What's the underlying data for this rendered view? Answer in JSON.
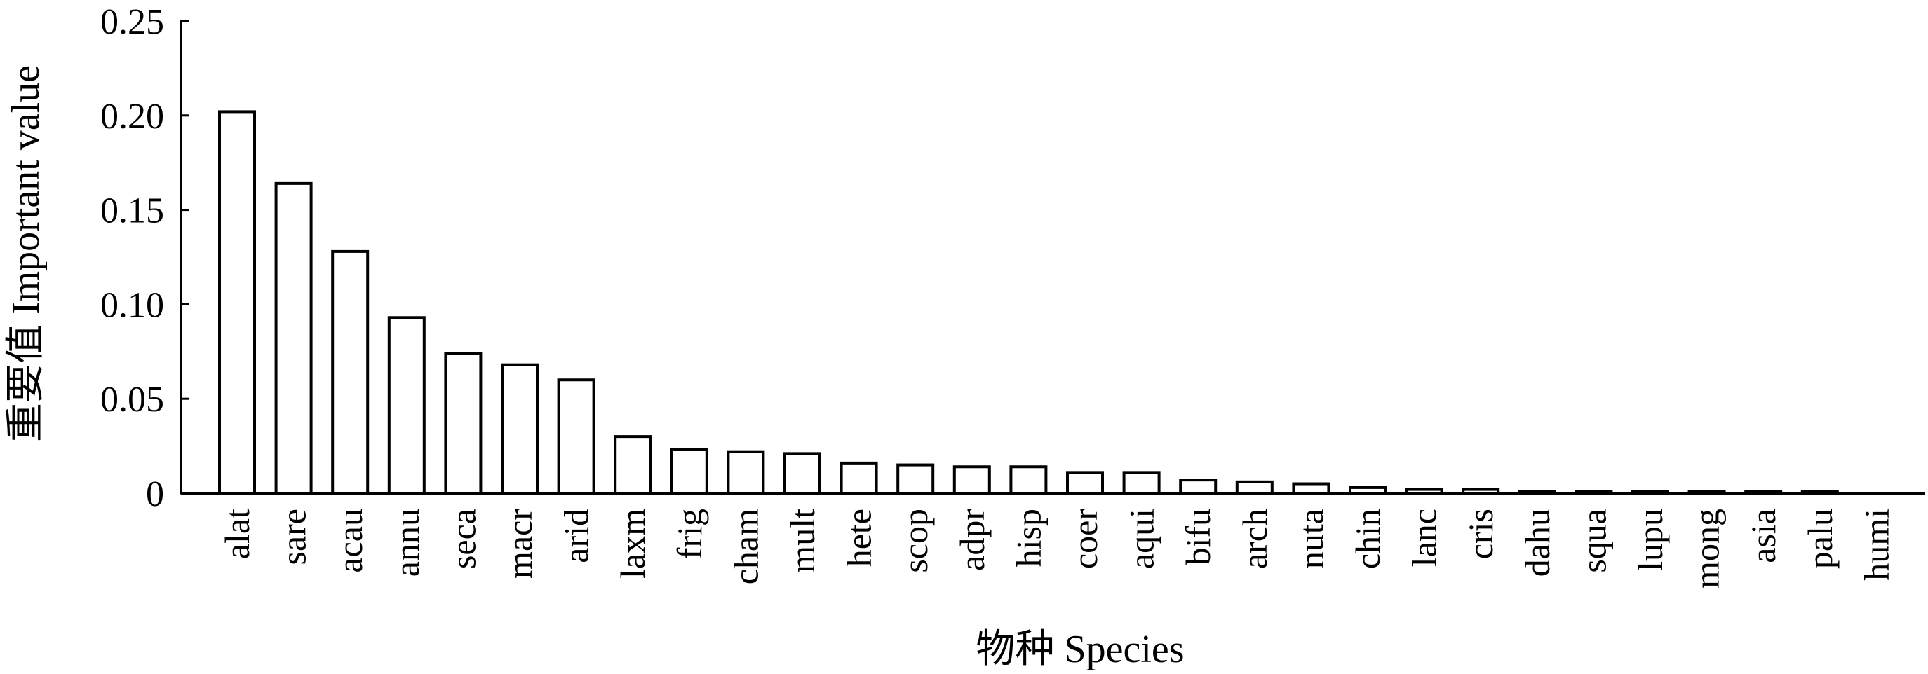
{
  "chart_data": {
    "type": "bar",
    "categories": [
      "alat",
      "sare",
      "acau",
      "annu",
      "seca",
      "macr",
      "arid",
      "laxm",
      "frig",
      "cham",
      "mult",
      "hete",
      "scop",
      "adpr",
      "hisp",
      "coer",
      "aqui",
      "bifu",
      "arch",
      "nuta",
      "chin",
      "lanc",
      "cris",
      "dahu",
      "squa",
      "lupu",
      "mong",
      "asia",
      "palu",
      "humi"
    ],
    "values": [
      0.202,
      0.164,
      0.128,
      0.093,
      0.074,
      0.068,
      0.06,
      0.03,
      0.023,
      0.022,
      0.021,
      0.016,
      0.015,
      0.014,
      0.014,
      0.011,
      0.011,
      0.007,
      0.006,
      0.005,
      0.003,
      0.002,
      0.002,
      0.001,
      0.001,
      0.001,
      0.001,
      0.001,
      0.001,
      0
    ],
    "xlabel": "物种 Species",
    "ylabel": "重要值 Important value",
    "yticks": [
      "0",
      "0.05",
      "0.10",
      "0.15",
      "0.20",
      "0.25"
    ],
    "ytick_values": [
      0,
      0.05,
      0.1,
      0.15,
      0.2,
      0.25
    ],
    "ylim": [
      0,
      0.25
    ],
    "grid": false,
    "bar_fill": "#ffffff",
    "bar_stroke": "#000000"
  }
}
